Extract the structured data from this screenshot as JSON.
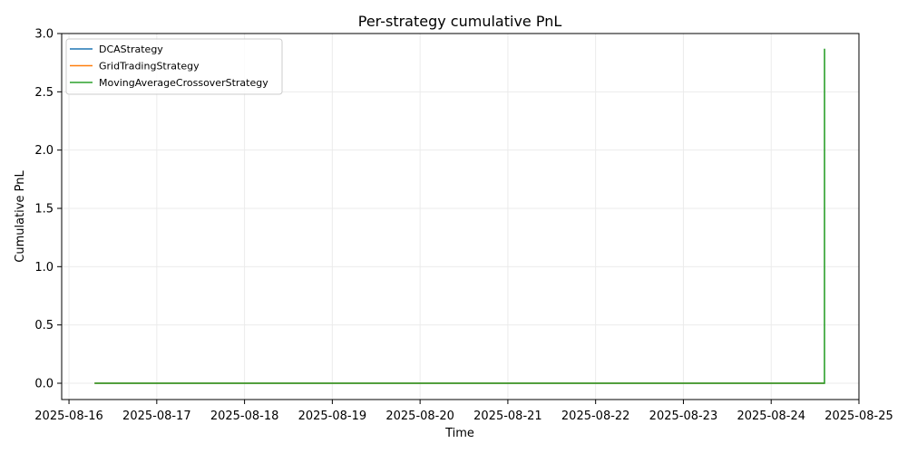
{
  "chart_data": {
    "type": "line",
    "title": "Per-strategy cumulative PnL",
    "xlabel": "Time",
    "ylabel": "Cumulative PnL",
    "x_ticks": [
      "2025-08-16",
      "2025-08-17",
      "2025-08-18",
      "2025-08-19",
      "2025-08-20",
      "2025-08-21",
      "2025-08-22",
      "2025-08-23",
      "2025-08-24",
      "2025-08-25"
    ],
    "y_ticks": [
      "0.0",
      "0.5",
      "1.0",
      "1.5",
      "2.0",
      "2.5",
      "3.0"
    ],
    "xlim": [
      "2025-08-15T22:00",
      "2025-08-25T00:00"
    ],
    "ylim": [
      -0.14,
      3.0
    ],
    "grid": true,
    "legend_position": "top-left",
    "series": [
      {
        "name": "DCAStrategy",
        "color": "#1f77b4",
        "x": [
          "2025-08-16T07:00",
          "2025-08-24T14:35",
          "2025-08-24T14:36"
        ],
        "y": [
          0,
          0,
          0
        ]
      },
      {
        "name": "GridTradingStrategy",
        "color": "#ff7f0e",
        "x": [
          "2025-08-16T07:00",
          "2025-08-24T14:35",
          "2025-08-24T14:36"
        ],
        "y": [
          0,
          0,
          0
        ]
      },
      {
        "name": "MovingAverageCrossoverStrategy",
        "color": "#2ca02c",
        "x": [
          "2025-08-16T07:00",
          "2025-08-24T14:35",
          "2025-08-24T14:36"
        ],
        "y": [
          0,
          0,
          2.87
        ]
      }
    ]
  }
}
